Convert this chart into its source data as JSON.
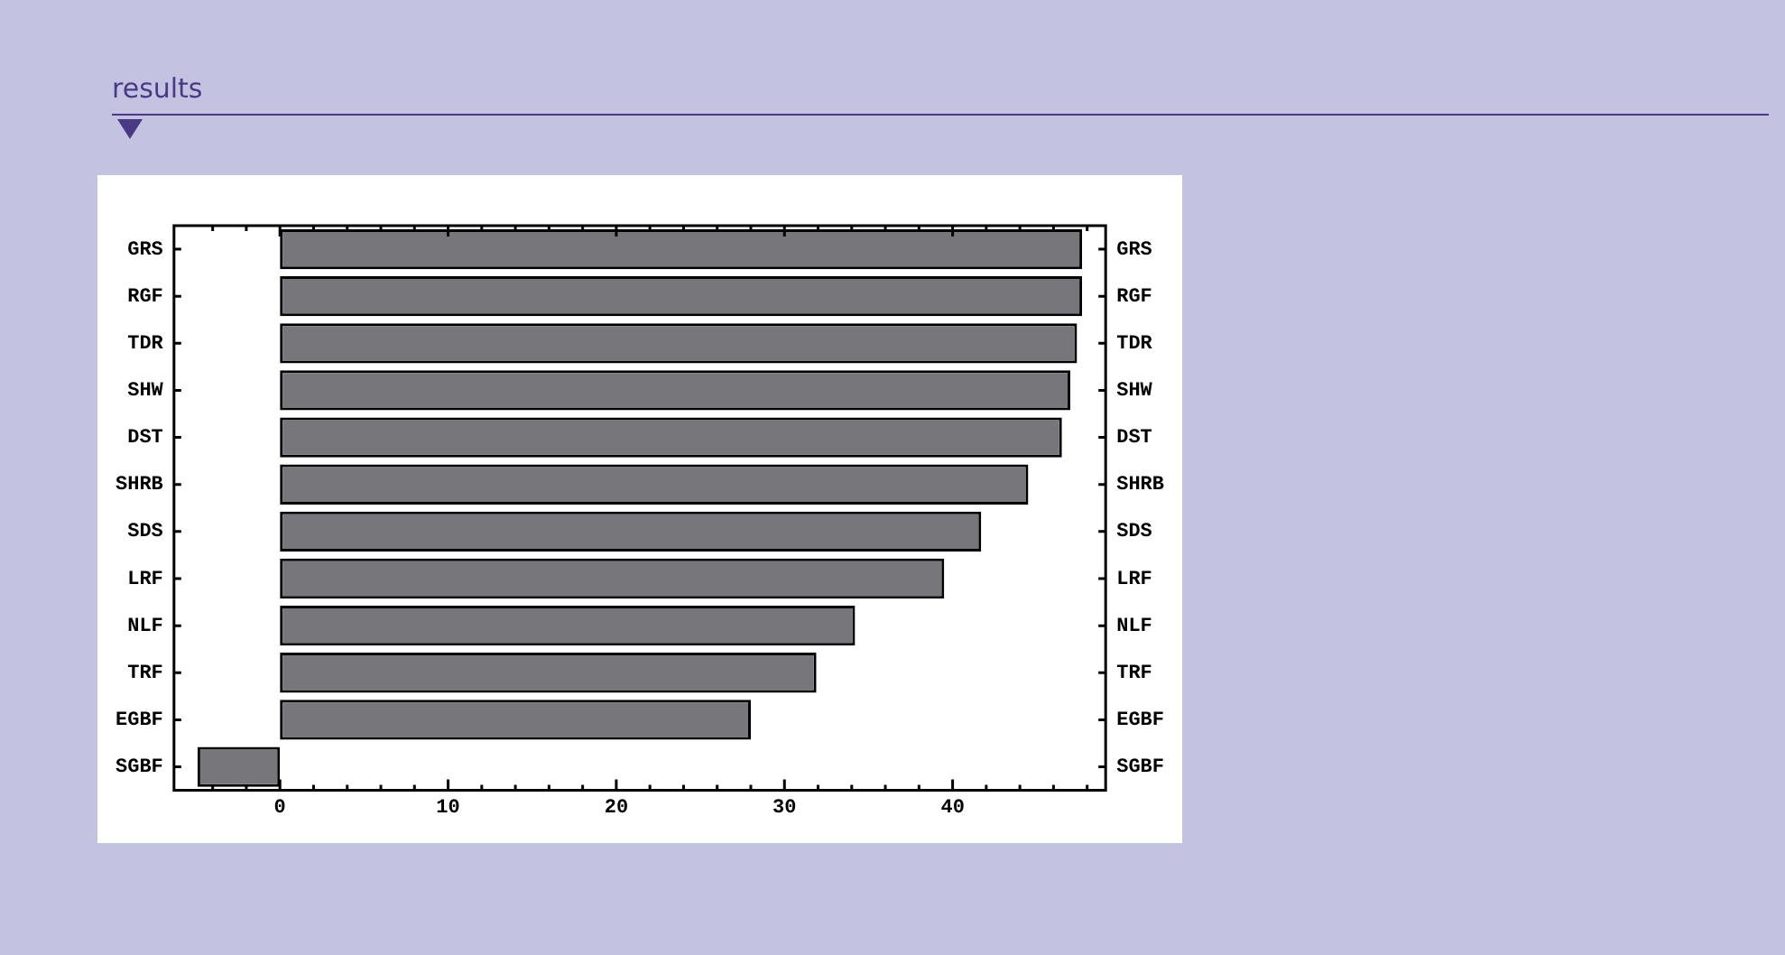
{
  "chart_data": {
    "type": "bar",
    "title": "results",
    "orientation": "horizontal",
    "categories": [
      "GRS",
      "RGF",
      "TDR",
      "SHW",
      "DST",
      "SHRB",
      "SDS",
      "LRF",
      "NLF",
      "TRF",
      "EGBF",
      "SGBF"
    ],
    "values": [
      47.7,
      47.7,
      47.4,
      47.0,
      46.5,
      44.5,
      41.7,
      39.5,
      34.2,
      31.9,
      28.0,
      -4.9
    ],
    "color": "#77777b",
    "xlim": [
      -6.3,
      49.1
    ],
    "xticks": [
      {
        "value": -4,
        "label": null
      },
      {
        "value": -2,
        "label": null
      },
      0,
      {
        "value": 2,
        "label": null
      },
      {
        "value": 4,
        "label": null
      },
      {
        "value": 6,
        "label": null
      },
      {
        "value": 8,
        "label": null
      },
      10,
      {
        "value": 12,
        "label": null
      },
      {
        "value": 14,
        "label": null
      },
      {
        "value": 16,
        "label": null
      },
      {
        "value": 18,
        "label": null
      },
      20,
      {
        "value": 22,
        "label": null
      },
      {
        "value": 24,
        "label": null
      },
      {
        "value": 26,
        "label": null
      },
      {
        "value": 28,
        "label": null
      },
      30,
      {
        "value": 32,
        "label": null
      },
      {
        "value": 34,
        "label": null
      },
      {
        "value": 36,
        "label": null
      },
      {
        "value": 38,
        "label": null
      },
      40,
      {
        "value": 42,
        "label": null
      },
      {
        "value": 44,
        "label": null
      },
      {
        "value": 46,
        "label": null
      },
      {
        "value": 48,
        "label": null
      }
    ],
    "grid": false,
    "legend": false
  }
}
